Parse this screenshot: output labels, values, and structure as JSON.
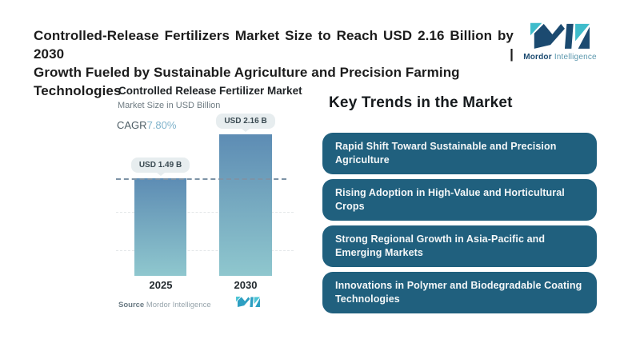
{
  "header": {
    "title_lines": [
      "Controlled-Release Fertilizers Market Size to Reach USD 2.16 Billion by 2030 |",
      "Growth Fueled by Sustainable Agriculture and Precision Farming Technologies"
    ],
    "brand": {
      "name_bold": "Mordor",
      "name_light": "Intelligence"
    }
  },
  "chart": {
    "title": "Controlled Release Fertilizer Market",
    "subtitle": "Market Size in USD Billion",
    "cagr_label": "CAGR",
    "cagr_value": "7.80%",
    "source_label": "Source",
    "source_value": "Mordor Intelligence"
  },
  "chart_data": {
    "type": "bar",
    "categories": [
      "2025",
      "2030"
    ],
    "values": [
      1.49,
      2.16
    ],
    "bar_labels": [
      "USD 1.49 B",
      "USD 2.16 B"
    ],
    "title": "Controlled Release Fertilizer Market",
    "subtitle": "Market Size in USD Billion",
    "cagr": "7.80%",
    "xlabel": "",
    "ylabel": "Market Size in USD Billion",
    "ylim": [
      0,
      2.4
    ],
    "grid": "faint dashed horizontal",
    "annotations": [
      "dashed blue-gray reference line at 2025 bar top extending across chart"
    ],
    "bar_gradient": [
      "#5D8CB4",
      "#8FC7CE"
    ]
  },
  "trends": {
    "heading": "Key Trends in the Market",
    "items": [
      "Rapid Shift Toward Sustainable and Precision Agriculture",
      "Rising Adoption in High-Value and Horticultural Crops",
      "Strong Regional Growth in Asia-Pacific and Emerging Markets",
      "Innovations in Polymer and Biodegradable Coating Technologies"
    ]
  },
  "colors": {
    "trend_box_bg": "#20607E",
    "bar_top": "#5D8CB4",
    "bar_bottom": "#8FC7CE",
    "brand_navy": "#1B4A70",
    "brand_teal": "#3FBCCB",
    "cagr_value": "#7FB3CB",
    "reference_line": "#7D93A6",
    "value_pill_bg": "#E7EDEF"
  }
}
